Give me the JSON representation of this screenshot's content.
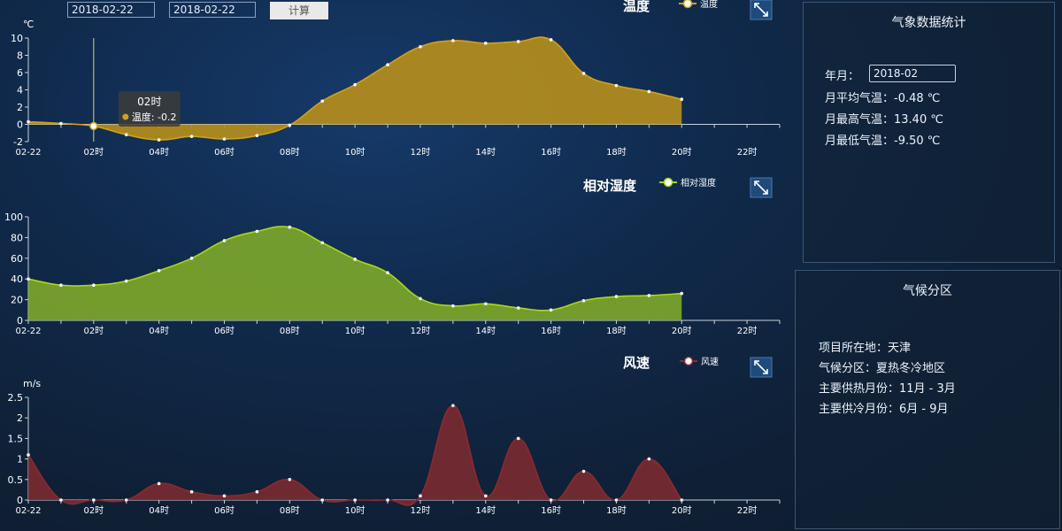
{
  "toolbar": {
    "start_date": "2018-02-22",
    "end_date": "2018-02-22",
    "calc_label": "计算"
  },
  "x_ticks": [
    "02-22",
    "02时",
    "04时",
    "06时",
    "08时",
    "10时",
    "12时",
    "14时",
    "16时",
    "18时",
    "20时",
    "22时"
  ],
  "stats_panel": {
    "title": "气象数据统计",
    "month_label": "年月：",
    "month_value": "2018-02",
    "avg_temp": "月平均气温：-0.48 ℃",
    "max_temp": "月最高气温：13.40 ℃",
    "min_temp": "月最低气温：-9.50 ℃"
  },
  "climate_panel": {
    "title": "气候分区",
    "location": "项目所在地：天津",
    "zone": "气候分区：夏热冬冷地区",
    "heating": "主要供热月份：11月 - 3月",
    "cooling": "主要供冷月份：6月 - 9月"
  },
  "colors": {
    "temperature": "#d4a017",
    "humidity": "#a8d818",
    "wind": "#8a2a30"
  },
  "chart_data": [
    {
      "type": "area",
      "title": "温度",
      "ylabel": "℃",
      "legend": "温度",
      "legend_position": "top-right",
      "ylim": [
        -2,
        10
      ],
      "yticks": [
        -2,
        0,
        2,
        4,
        6,
        8,
        10
      ],
      "x_hours": [
        0,
        1,
        2,
        3,
        4,
        5,
        6,
        7,
        8,
        9,
        10,
        11,
        12,
        13,
        14,
        15,
        16,
        17,
        18,
        19,
        20
      ],
      "values": [
        0.3,
        0.1,
        -0.2,
        -1.2,
        -1.8,
        -1.4,
        -1.7,
        -1.3,
        -0.1,
        2.7,
        4.6,
        6.9,
        9.0,
        9.7,
        9.4,
        9.6,
        9.8,
        5.9,
        4.5,
        3.8,
        2.9
      ],
      "tooltip": {
        "title": "02时",
        "label": "温度: -0.2",
        "hour": 2
      }
    },
    {
      "type": "area",
      "title": "相对湿度",
      "legend": "相对湿度",
      "legend_position": "top-right",
      "ylim": [
        0,
        100
      ],
      "yticks": [
        0,
        20,
        40,
        60,
        80,
        100
      ],
      "x_hours": [
        0,
        1,
        2,
        3,
        4,
        5,
        6,
        7,
        8,
        9,
        10,
        11,
        12,
        13,
        14,
        15,
        16,
        17,
        18,
        19,
        20
      ],
      "values": [
        40,
        34,
        34,
        38,
        48,
        60,
        77,
        86,
        90,
        75,
        59,
        46,
        21,
        14,
        16,
        12,
        10,
        19,
        23,
        24,
        26
      ]
    },
    {
      "type": "area",
      "title": "风速",
      "ylabel": "m/s",
      "legend": "风速",
      "legend_position": "top-right",
      "ylim": [
        0,
        2.5
      ],
      "yticks": [
        "0",
        "0.5",
        "1",
        "1.5",
        "2",
        "2.5"
      ],
      "x_hours": [
        0,
        1,
        2,
        3,
        4,
        5,
        6,
        7,
        8,
        9,
        10,
        11,
        12,
        13,
        14,
        15,
        16,
        17,
        18,
        19,
        20
      ],
      "values": [
        1.1,
        0,
        0,
        0,
        0.4,
        0.2,
        0.1,
        0.2,
        0.5,
        0,
        0,
        0,
        0.1,
        2.3,
        0.1,
        1.5,
        0,
        0.7,
        0,
        1.0,
        0
      ]
    }
  ]
}
